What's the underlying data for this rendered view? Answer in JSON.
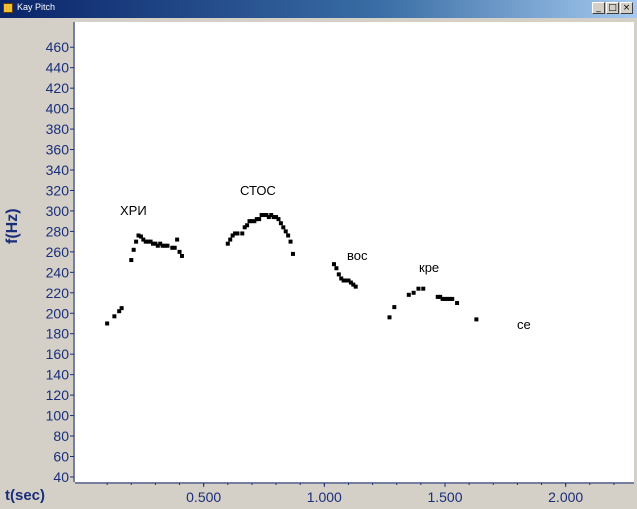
{
  "window": {
    "title": "Kay Pitch",
    "buttons": [
      "minimize",
      "restore",
      "close"
    ]
  },
  "axes": {
    "ylabel": "f(Hz)",
    "xlabel": "t(sec)"
  },
  "syllables": [
    {
      "text": "ХРИ"
    },
    {
      "text": "СТОС"
    },
    {
      "text": "вос"
    },
    {
      "text": "кре"
    },
    {
      "text": "се"
    }
  ],
  "chart_data": {
    "type": "scatter",
    "xlabel": "t(sec)",
    "ylabel": "f(Hz)",
    "xlim": [
      0,
      2.25
    ],
    "ylim": [
      38,
      470
    ],
    "xticks": [
      0.5,
      1.0,
      1.5,
      2.0
    ],
    "xtick_labels": [
      "0.500",
      "1.000",
      "1.500",
      "2.000"
    ],
    "yticks": [
      40,
      60,
      80,
      100,
      120,
      140,
      160,
      180,
      200,
      220,
      240,
      260,
      280,
      300,
      320,
      340,
      360,
      380,
      400,
      420,
      440,
      460
    ],
    "grid": false,
    "color": "#000000",
    "points": [
      [
        0.1,
        190
      ],
      [
        0.13,
        197
      ],
      [
        0.15,
        202
      ],
      [
        0.16,
        205
      ],
      [
        0.2,
        252
      ],
      [
        0.21,
        262
      ],
      [
        0.22,
        270
      ],
      [
        0.23,
        276
      ],
      [
        0.24,
        275
      ],
      [
        0.25,
        272
      ],
      [
        0.26,
        270
      ],
      [
        0.27,
        270
      ],
      [
        0.28,
        270
      ],
      [
        0.29,
        268
      ],
      [
        0.3,
        268
      ],
      [
        0.31,
        266
      ],
      [
        0.32,
        268
      ],
      [
        0.33,
        266
      ],
      [
        0.34,
        266
      ],
      [
        0.35,
        266
      ],
      [
        0.37,
        264
      ],
      [
        0.38,
        264
      ],
      [
        0.39,
        272
      ],
      [
        0.4,
        260
      ],
      [
        0.41,
        256
      ],
      [
        0.6,
        268
      ],
      [
        0.61,
        272
      ],
      [
        0.62,
        276
      ],
      [
        0.63,
        278
      ],
      [
        0.64,
        278
      ],
      [
        0.66,
        278
      ],
      [
        0.67,
        284
      ],
      [
        0.68,
        286
      ],
      [
        0.69,
        290
      ],
      [
        0.7,
        290
      ],
      [
        0.71,
        290
      ],
      [
        0.72,
        292
      ],
      [
        0.73,
        292
      ],
      [
        0.74,
        296
      ],
      [
        0.75,
        296
      ],
      [
        0.76,
        296
      ],
      [
        0.77,
        294
      ],
      [
        0.78,
        296
      ],
      [
        0.79,
        294
      ],
      [
        0.8,
        294
      ],
      [
        0.81,
        292
      ],
      [
        0.82,
        288
      ],
      [
        0.83,
        284
      ],
      [
        0.84,
        280
      ],
      [
        0.85,
        276
      ],
      [
        0.86,
        270
      ],
      [
        0.87,
        258
      ],
      [
        1.04,
        248
      ],
      [
        1.05,
        244
      ],
      [
        1.06,
        238
      ],
      [
        1.07,
        234
      ],
      [
        1.08,
        232
      ],
      [
        1.09,
        232
      ],
      [
        1.1,
        232
      ],
      [
        1.11,
        230
      ],
      [
        1.12,
        228
      ],
      [
        1.13,
        226
      ],
      [
        1.27,
        196
      ],
      [
        1.29,
        206
      ],
      [
        1.35,
        218
      ],
      [
        1.37,
        220
      ],
      [
        1.39,
        224
      ],
      [
        1.41,
        224
      ],
      [
        1.47,
        216
      ],
      [
        1.48,
        216
      ],
      [
        1.49,
        214
      ],
      [
        1.5,
        214
      ],
      [
        1.51,
        214
      ],
      [
        1.52,
        214
      ],
      [
        1.53,
        214
      ],
      [
        1.55,
        210
      ],
      [
        1.63,
        194
      ]
    ]
  }
}
